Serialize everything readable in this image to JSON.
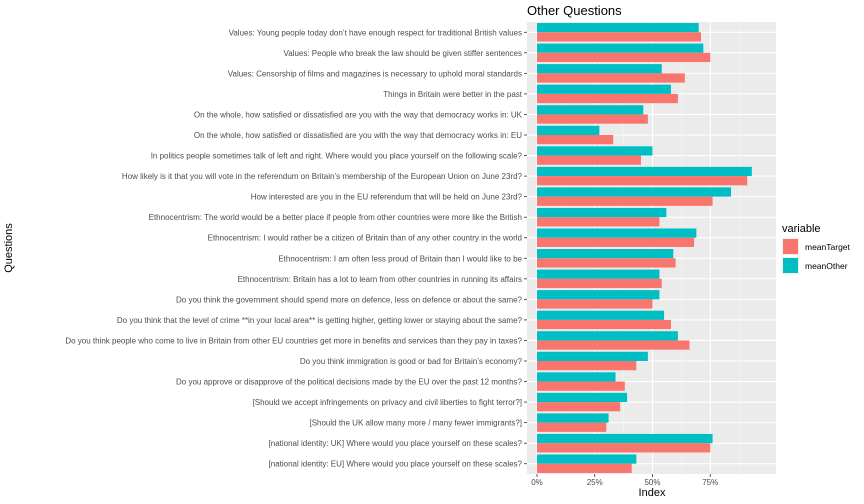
{
  "chart_data": {
    "type": "bar",
    "orientation": "horizontal",
    "title": "Other Questions",
    "xlabel": "Index",
    "ylabel": "Questions",
    "xlim": [
      0,
      1
    ],
    "x_ticks": [
      "0%",
      "25%",
      "50%",
      "75%"
    ],
    "grid": true,
    "legend_position": "right",
    "legend_title": "variable",
    "categories": [
      "Values: Young people today don’t have enough respect for traditional British values",
      "Values: People who break the law should be given stiffer sentences",
      "Values: Censorship of films and magazines is necessary to uphold moral standards",
      "Things in Britain were better in the past",
      "On the whole, how satisfied or dissatisfied are you with the way that democracy works in: UK",
      "On the whole, how satisfied or dissatisfied are you with the way that democracy works in: EU",
      "In politics people sometimes talk of left and right. Where would you place yourself on the following scale?",
      "How likely is it that you will vote in the referendum on Britain’s membership of the European Union on June 23rd?",
      "How interested are you in the EU referendum that will be held on June 23rd?",
      "Ethnocentrism: The world would be a better place if people from other countries were more like the British",
      "Ethnocentrism: I would rather be a citizen of Britain than of any other country in the world",
      "Ethnocentrism: I am often less proud of Britain than I would like to be",
      "Ethnocentrism: Britain has a lot to learn from other countries in running its affairs",
      "Do you think the government should spend more on defence, less on defence or about the same?",
      "Do you think that the level of crime **in your local area** is getting higher, getting lower or staying about the same?",
      "Do you think people who come to live in Britain from other EU countries get more in benefits and services than they pay in taxes?",
      "Do you think immigration is good or bad for Britain’s economy?",
      "Do you approve or disapprove of the political decisions made by the EU over the past 12 months?",
      "[Should we accept infringements on privacy and civil liberties to fight terror?]",
      "[Should the UK allow many more / many fewer immigrants?]",
      "[national identity: UK] Where would you place yourself on these scales?",
      "[national identity: EU] Where would you place yourself on these scales?"
    ],
    "series": [
      {
        "name": "meanTarget",
        "color": "#F8766D",
        "values": [
          0.71,
          0.75,
          0.64,
          0.61,
          0.48,
          0.33,
          0.45,
          0.91,
          0.76,
          0.53,
          0.68,
          0.6,
          0.54,
          0.5,
          0.58,
          0.66,
          0.43,
          0.38,
          0.36,
          0.3,
          0.75,
          0.41
        ]
      },
      {
        "name": "meanOther",
        "color": "#00BFC4",
        "values": [
          0.7,
          0.72,
          0.54,
          0.58,
          0.46,
          0.27,
          0.5,
          0.93,
          0.84,
          0.56,
          0.69,
          0.59,
          0.53,
          0.53,
          0.55,
          0.61,
          0.48,
          0.34,
          0.39,
          0.31,
          0.76,
          0.43
        ]
      }
    ]
  }
}
